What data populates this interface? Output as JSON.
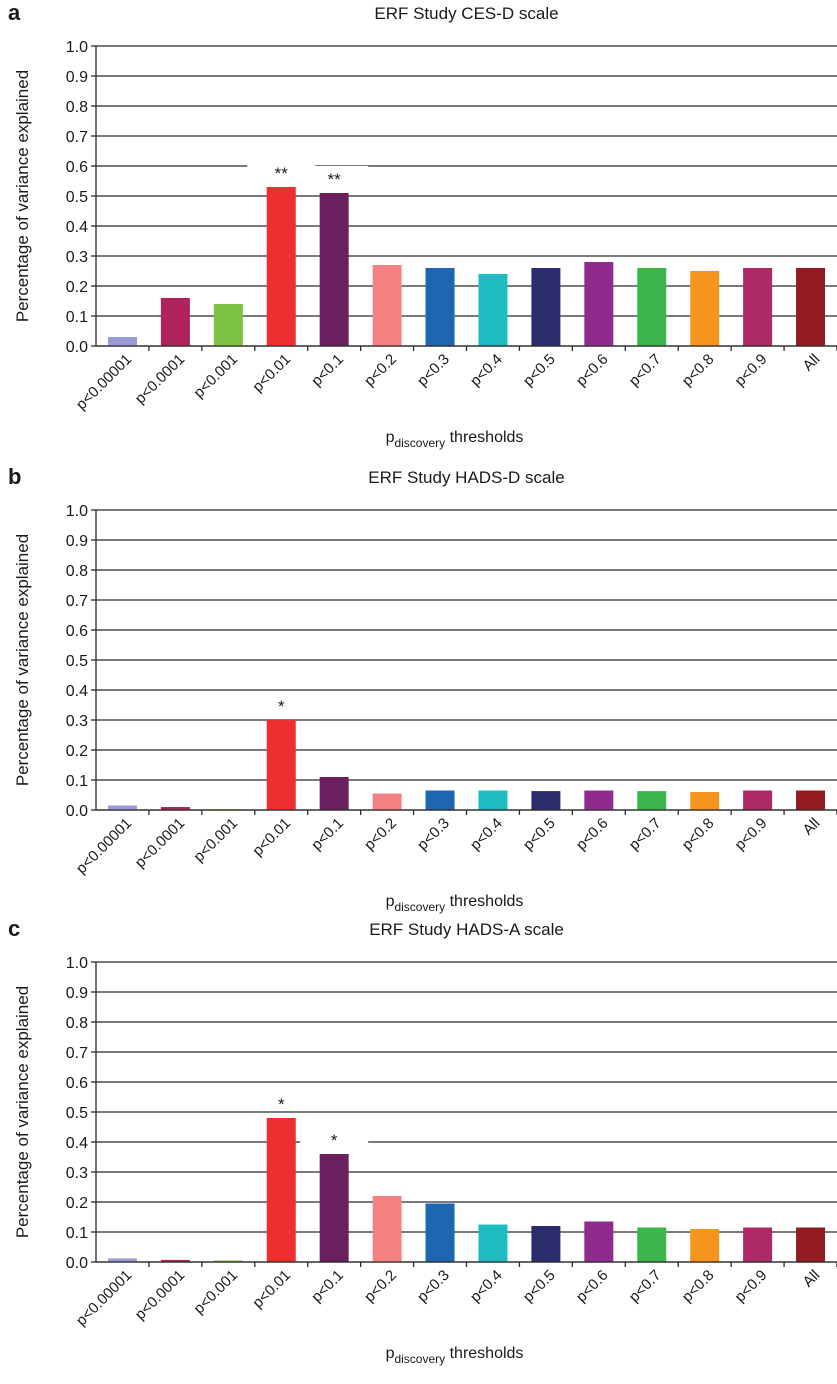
{
  "chart_data": [
    {
      "panel_label": "a",
      "type": "bar",
      "title": "ERF Study CES-D scale",
      "ylabel": "Percentage of variance explained",
      "xlabel_main": "p",
      "xlabel_sub": "discovery",
      "xlabel_rest": " thresholds",
      "ylim": [
        0,
        1.0
      ],
      "yticks": [
        "0.0",
        "0.1",
        "0.2",
        "0.3",
        "0.4",
        "0.5",
        "0.6",
        "0.7",
        "0.8",
        "0.9",
        "1.0"
      ],
      "grid": true,
      "categories": [
        "p<0.00001",
        "p<0.0001",
        "p<0.001",
        "p<0.01",
        "p<0.1",
        "p<0.2",
        "p<0.3",
        "p<0.4",
        "p<0.5",
        "p<0.6",
        "p<0.7",
        "p<0.8",
        "p<0.9",
        "All"
      ],
      "values": [
        0.03,
        0.16,
        0.14,
        0.53,
        0.51,
        0.27,
        0.26,
        0.24,
        0.26,
        0.28,
        0.26,
        0.25,
        0.26,
        0.26
      ],
      "annotations": [
        "",
        "",
        "",
        "**",
        "**",
        "",
        "",
        "",
        "",
        "",
        "",
        "",
        "",
        ""
      ]
    },
    {
      "panel_label": "b",
      "type": "bar",
      "title": "ERF Study HADS-D scale",
      "ylabel": "Percentage of variance explained",
      "xlabel_main": "p",
      "xlabel_sub": "discovery",
      "xlabel_rest": " thresholds",
      "ylim": [
        0,
        1.0
      ],
      "yticks": [
        "0.0",
        "0.1",
        "0.2",
        "0.3",
        "0.4",
        "0.5",
        "0.6",
        "0.7",
        "0.8",
        "0.9",
        "1.0"
      ],
      "grid": true,
      "categories": [
        "p<0.00001",
        "p<0.0001",
        "p<0.001",
        "p<0.01",
        "p<0.1",
        "p<0.2",
        "p<0.3",
        "p<0.4",
        "p<0.5",
        "p<0.6",
        "p<0.7",
        "p<0.8",
        "p<0.9",
        "All"
      ],
      "values": [
        0.015,
        0.01,
        0.003,
        0.3,
        0.11,
        0.055,
        0.065,
        0.065,
        0.063,
        0.065,
        0.063,
        0.06,
        0.065,
        0.065
      ],
      "annotations": [
        "",
        "",
        "",
        "*",
        "",
        "",
        "",
        "",
        "",
        "",
        "",
        "",
        "",
        ""
      ]
    },
    {
      "panel_label": "c",
      "type": "bar",
      "title": "ERF Study HADS-A scale",
      "ylabel": "Percentage of variance explained",
      "xlabel_main": "p",
      "xlabel_sub": "discovery",
      "xlabel_rest": " thresholds",
      "ylim": [
        0,
        1.0
      ],
      "yticks": [
        "0.0",
        "0.1",
        "0.2",
        "0.3",
        "0.4",
        "0.5",
        "0.6",
        "0.7",
        "0.8",
        "0.9",
        "1.0"
      ],
      "grid": true,
      "categories": [
        "p<0.00001",
        "p<0.0001",
        "p<0.001",
        "p<0.01",
        "p<0.1",
        "p<0.2",
        "p<0.3",
        "p<0.4",
        "p<0.5",
        "p<0.6",
        "p<0.7",
        "p<0.8",
        "p<0.9",
        "All"
      ],
      "values": [
        0.012,
        0.007,
        0.005,
        0.48,
        0.36,
        0.22,
        0.195,
        0.125,
        0.12,
        0.135,
        0.115,
        0.11,
        0.115,
        0.115
      ],
      "annotations": [
        "",
        "",
        "",
        "*",
        "*",
        "",
        "",
        "",
        "",
        "",
        "",
        "",
        "",
        ""
      ]
    }
  ],
  "bar_colors": [
    "#9b9bd6",
    "#b0245e",
    "#7cc243",
    "#ee2e2f",
    "#6c1f5e",
    "#f58283",
    "#1e66b2",
    "#1fbcc2",
    "#2a2c6e",
    "#8e2b8c",
    "#3cb54a",
    "#f7941d",
    "#ad2a66",
    "#921c21"
  ]
}
